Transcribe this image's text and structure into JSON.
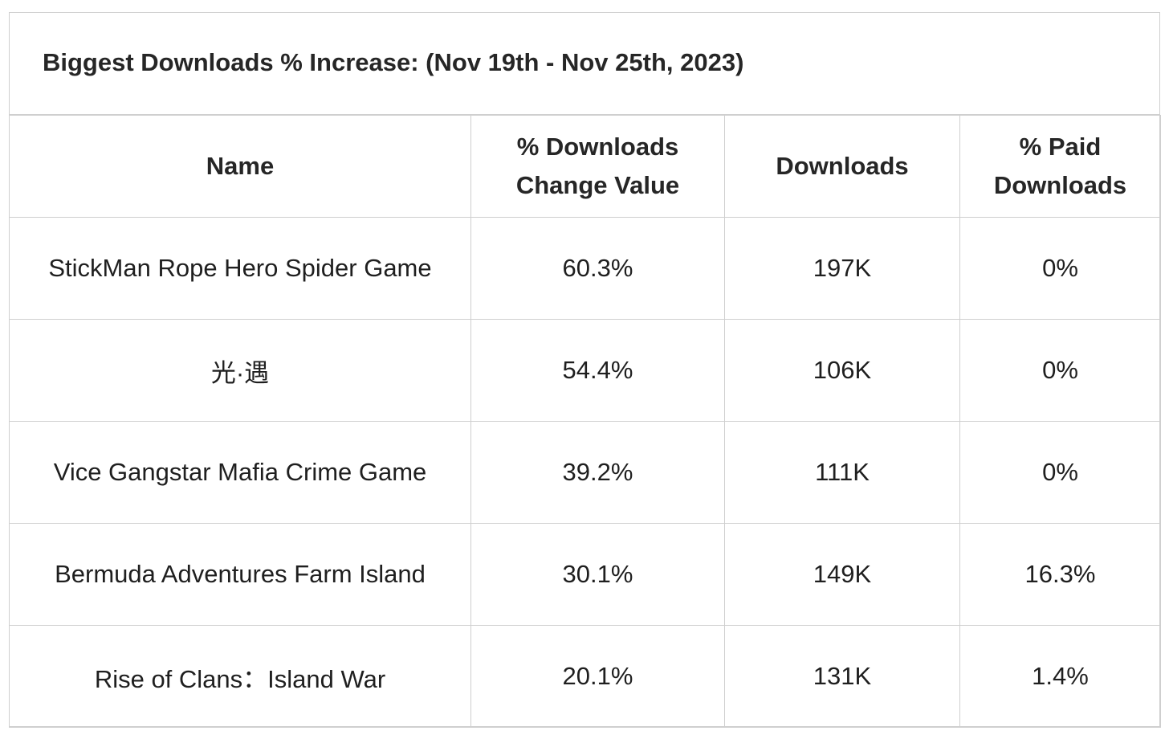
{
  "title": "Biggest Downloads % Increase:  (Nov 19th - Nov 25th, 2023)",
  "columns": {
    "name": [
      "Name"
    ],
    "change": [
      "% Downloads",
      "Change Value"
    ],
    "downloads": [
      "Downloads"
    ],
    "paid": [
      "% Paid",
      "Downloads"
    ]
  },
  "rows": [
    {
      "name": "StickMan Rope Hero Spider Game",
      "change": "60.3%",
      "downloads": "197K",
      "paid": "0%"
    },
    {
      "name": "光·遇",
      "change": "54.4%",
      "downloads": "106K",
      "paid": "0%"
    },
    {
      "name": "Vice Gangstar Mafia Crime Game",
      "change": "39.2%",
      "downloads": "111K",
      "paid": "0%"
    },
    {
      "name": "Bermuda Adventures Farm Island",
      "change": "30.1%",
      "downloads": "149K",
      "paid": "16.3%"
    },
    {
      "name": "Rise of Clans：Island War",
      "change": "20.1%",
      "downloads": "131K",
      "paid": "1.4%"
    }
  ]
}
